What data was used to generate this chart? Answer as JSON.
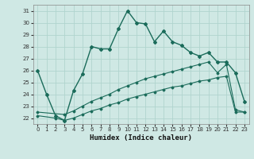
{
  "title": "",
  "xlabel": "Humidex (Indice chaleur)",
  "ylabel": "",
  "background_color": "#cfe8e4",
  "grid_color": "#b0d4ce",
  "line_color": "#1a6b5a",
  "xlim": [
    -0.5,
    23.5
  ],
  "ylim": [
    21.5,
    31.5
  ],
  "xticks": [
    0,
    1,
    2,
    3,
    4,
    5,
    6,
    7,
    8,
    9,
    10,
    11,
    12,
    13,
    14,
    15,
    16,
    17,
    18,
    19,
    20,
    21,
    22,
    23
  ],
  "yticks": [
    22,
    23,
    24,
    25,
    26,
    27,
    28,
    29,
    30,
    31
  ],
  "line1_x": [
    0,
    1,
    2,
    3,
    4,
    5,
    6,
    7,
    8,
    9,
    10,
    11,
    12,
    13,
    14,
    15,
    16,
    17,
    18,
    19,
    20,
    21,
    22,
    23
  ],
  "line1_y": [
    26.0,
    24.0,
    22.2,
    21.8,
    24.3,
    25.7,
    28.0,
    27.8,
    27.8,
    29.5,
    31.0,
    30.0,
    29.9,
    28.4,
    29.3,
    28.4,
    28.1,
    27.5,
    27.2,
    27.5,
    26.7,
    26.7,
    25.8,
    23.4
  ],
  "line2_x": [
    0,
    3,
    4,
    5,
    6,
    7,
    8,
    9,
    10,
    11,
    12,
    13,
    14,
    15,
    16,
    17,
    18,
    19,
    20,
    21,
    22,
    23
  ],
  "line2_y": [
    22.5,
    22.3,
    22.6,
    23.0,
    23.4,
    23.7,
    24.0,
    24.4,
    24.7,
    25.0,
    25.3,
    25.5,
    25.7,
    25.9,
    26.1,
    26.3,
    26.5,
    26.7,
    25.8,
    26.5,
    22.7,
    22.5
  ],
  "line3_x": [
    0,
    2,
    3,
    4,
    5,
    6,
    7,
    8,
    9,
    10,
    11,
    12,
    13,
    14,
    15,
    16,
    17,
    18,
    19,
    20,
    21,
    22,
    23
  ],
  "line3_y": [
    22.2,
    22.0,
    21.8,
    22.0,
    22.3,
    22.6,
    22.8,
    23.1,
    23.3,
    23.6,
    23.8,
    24.0,
    24.2,
    24.4,
    24.6,
    24.7,
    24.9,
    25.1,
    25.2,
    25.4,
    25.5,
    22.5,
    22.5
  ]
}
